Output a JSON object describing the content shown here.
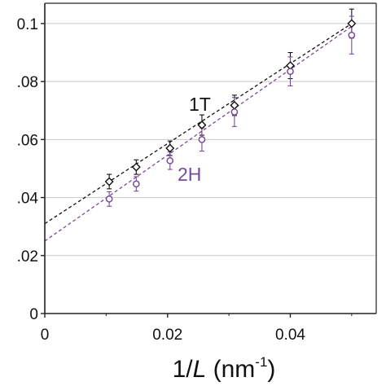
{
  "chart_data": {
    "type": "scatter",
    "xlabel": {
      "prefix": "1/",
      "variable": "L",
      "unit_open": " (nm",
      "unit_exp": "-1",
      "unit_close": ")"
    },
    "ylabel": "",
    "xlim": [
      0,
      0.054
    ],
    "ylim": [
      0,
      0.107
    ],
    "x_ticks": [
      0,
      0.02,
      0.04
    ],
    "x_tick_labels": [
      "0",
      "0.02",
      "0.04"
    ],
    "y_ticks": [
      0,
      0.02,
      0.04,
      0.06,
      0.08,
      0.1
    ],
    "y_tick_labels": [
      "0",
      ".02",
      ".04",
      ".06",
      ".08",
      "0.1"
    ],
    "grid": "horizontal",
    "series": [
      {
        "name": "1T",
        "color": "#111111",
        "marker": "diamond",
        "x": [
          0.0105,
          0.0149,
          0.0204,
          0.0256,
          0.0309,
          0.04,
          0.05
        ],
        "y": [
          0.0455,
          0.0505,
          0.057,
          0.065,
          0.0718,
          0.0855,
          0.1
        ],
        "err": [
          0.0025,
          0.0025,
          0.0025,
          0.0035,
          0.0035,
          0.0045,
          0.005
        ],
        "fit": {
          "intercept": 0.031,
          "slope": 1.38
        }
      },
      {
        "name": "2H",
        "color": "#7a4a9a",
        "marker": "circle",
        "x": [
          0.0105,
          0.0149,
          0.0204,
          0.0256,
          0.0309,
          0.04,
          0.05
        ],
        "y": [
          0.0395,
          0.0447,
          0.0527,
          0.06,
          0.0695,
          0.0835,
          0.096
        ],
        "err": [
          0.0025,
          0.0025,
          0.003,
          0.004,
          0.005,
          0.005,
          0.0065
        ],
        "fit": {
          "intercept": 0.025,
          "slope": 1.48
        }
      }
    ]
  }
}
